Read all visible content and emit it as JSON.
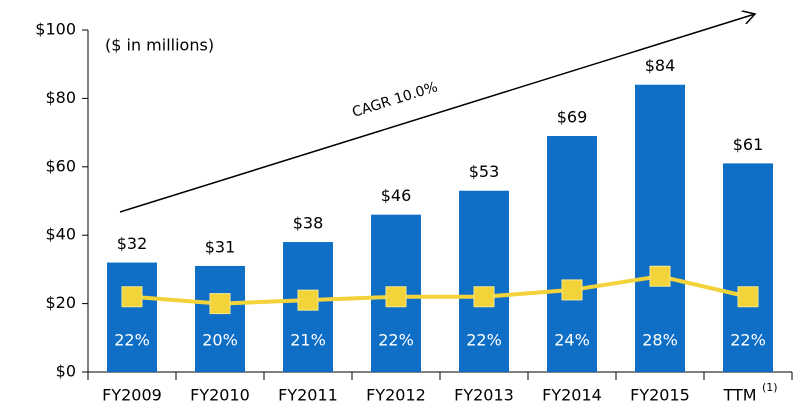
{
  "chart_data": {
    "type": "bar_line",
    "categories": [
      "FY2009",
      "FY2010",
      "FY2011",
      "FY2012",
      "FY2013",
      "FY2014",
      "FY2015",
      "TTM"
    ],
    "category_footnote": "(1)",
    "bars": {
      "color": "#0f6fc6",
      "values": [
        32,
        31,
        38,
        46,
        53,
        69,
        84,
        61
      ],
      "value_labels": [
        "$32",
        "$31",
        "$38",
        "$46",
        "$53",
        "$69",
        "$84",
        "$61"
      ]
    },
    "line": {
      "color": "#f2d33a",
      "values": [
        22,
        20,
        21,
        22,
        22,
        24,
        28,
        22
      ],
      "value_labels": [
        "22%",
        "20%",
        "21%",
        "22%",
        "22%",
        "24%",
        "28%",
        "22%"
      ]
    },
    "ylim": [
      0,
      100
    ],
    "yticks": [
      {
        "value": 0,
        "label": "$0"
      },
      {
        "value": 20,
        "label": "$20"
      },
      {
        "value": 40,
        "label": "$40"
      },
      {
        "value": 60,
        "label": "$60"
      },
      {
        "value": 80,
        "label": "$80"
      },
      {
        "value": 100,
        "label": "$100"
      }
    ],
    "annotations": {
      "units": "($ in millions)",
      "growth": "CAGR 10.0%"
    }
  }
}
